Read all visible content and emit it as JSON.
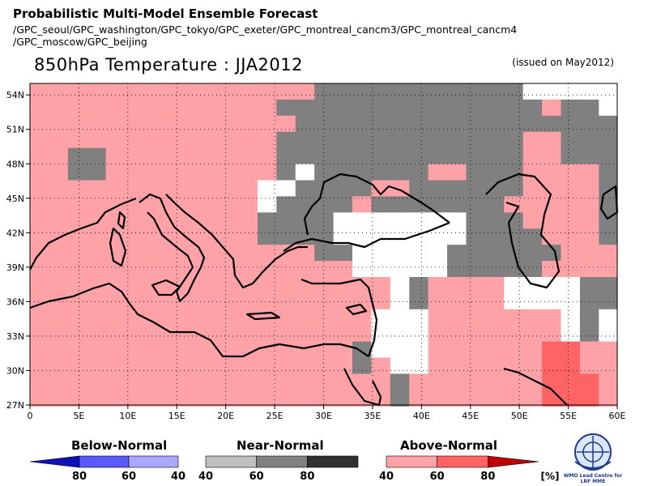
{
  "header": {
    "title": "Probabilistic Multi-Model Ensemble Forecast",
    "models_line1": "/GPC_seoul/GPC_washington/GPC_tokyo/GPC_exeter/GPC_montreal_cancm3/GPC_montreal_cancm4",
    "models_line2": "/GPC_moscow/GPC_beijing",
    "variable": "850hPa Temperature : JJA2012",
    "issued": "(issued on May2012)"
  },
  "map": {
    "lon_labels": [
      "0",
      "5E",
      "10E",
      "15E",
      "20E",
      "25E",
      "30E",
      "35E",
      "40E",
      "45E",
      "50E",
      "55E",
      "60E"
    ],
    "lat_labels": [
      "27N",
      "30N",
      "33N",
      "36N",
      "39N",
      "42N",
      "45N",
      "48N",
      "51N",
      "54N"
    ],
    "lon_range": [
      0,
      60
    ],
    "lat_range": [
      27,
      55
    ],
    "colors": {
      "above40": "#ffa2a8",
      "above60": "#ff6464",
      "near60": "#808080",
      "clim": "#ffffff"
    },
    "grid_step_deg": 2.5,
    "grid_rows_note": "rows from north (55N) to south, columns from 0E eastward; codes: A=above 40-60, R=above 60-80, G=near 60-80, W=white",
    "grid_rows": [
      "AAAAAAAAAAAAAAAGGGGGGGGGGGWWWWW",
      "AAAAAAAAAAAAAGGGGGGGGGGGGGGAGGW",
      "AAAAAAAAAAAAAAGGGGGGGGGGGGGGGGG",
      "AAAAAAAAAAAAAGGGGGGGGGGGGGAAGGGG",
      "AAGGAAAAAAAAAGGGGGGGGGGGGGAAGGGG",
      "AAGGAAAAAAAAAGWGGGGGGAAGGGAAAAGG",
      "AAAAAAAAAAAAWWGGGGAAGGGGGGAAAAGG",
      "AAAAAAAAAAAAWGGGGAGGGGGGGAAAAAGG",
      "AAAAAAAAAAAAGGGGWWWWWWWGGGAAAAGGW",
      "AAAAAAAAAAAAGGGGWWWWWWWGGGGAAAGGW",
      "AAAAAAAAAAAAAAAGGWWWWWGGGGGGAAAGW",
      "AAAAAAAAAAAAAAAAAWWWWWGGGGGAAAAGW",
      "AAAAAAAAAAAAAAAAAAAWGAAAAWWWWGGGW",
      "AAAAAAAAAAAAAAAAAAAWGAAAAWWWWGGGW",
      "AAAAAAAAAAAAAAAAAAWWWAAAAAAAWGWW",
      "AAAAAAAAAAAAAAAAAAWWWAAAAAAAWGWW",
      "AAAAAAAAAAAAAAAAAGWWWAAAAAARRAAA",
      "AAAAAAAAAAAAAAAAAGAWWAAAAAARRAAA",
      "AAAAAAAAAAAAAAAAAAAGAAAAAAARRRAA",
      "AAAAAAAAAAAAAAAAAAAGAAAAAAARRRAA"
    ]
  },
  "legend": {
    "below": {
      "title": "Below-Normal",
      "ticks": [
        "80",
        "60",
        "40"
      ],
      "colors": [
        "#1010b8",
        "#5a5aff",
        "#a8a8ff"
      ]
    },
    "near": {
      "title": "Near-Normal",
      "ticks": [
        "40",
        "60",
        "80"
      ],
      "colors": [
        "#c0c0c0",
        "#808080",
        "#303030"
      ]
    },
    "above": {
      "title": "Above-Normal",
      "ticks": [
        "40",
        "60",
        "80"
      ],
      "unit": "[%]",
      "colors": [
        "#ffa2a8",
        "#ff6464",
        "#c00000"
      ]
    }
  },
  "logo": {
    "icon": "wmo-emblem-icon",
    "line1": "WMO Lead Centre for",
    "line2": "LRF MME"
  }
}
